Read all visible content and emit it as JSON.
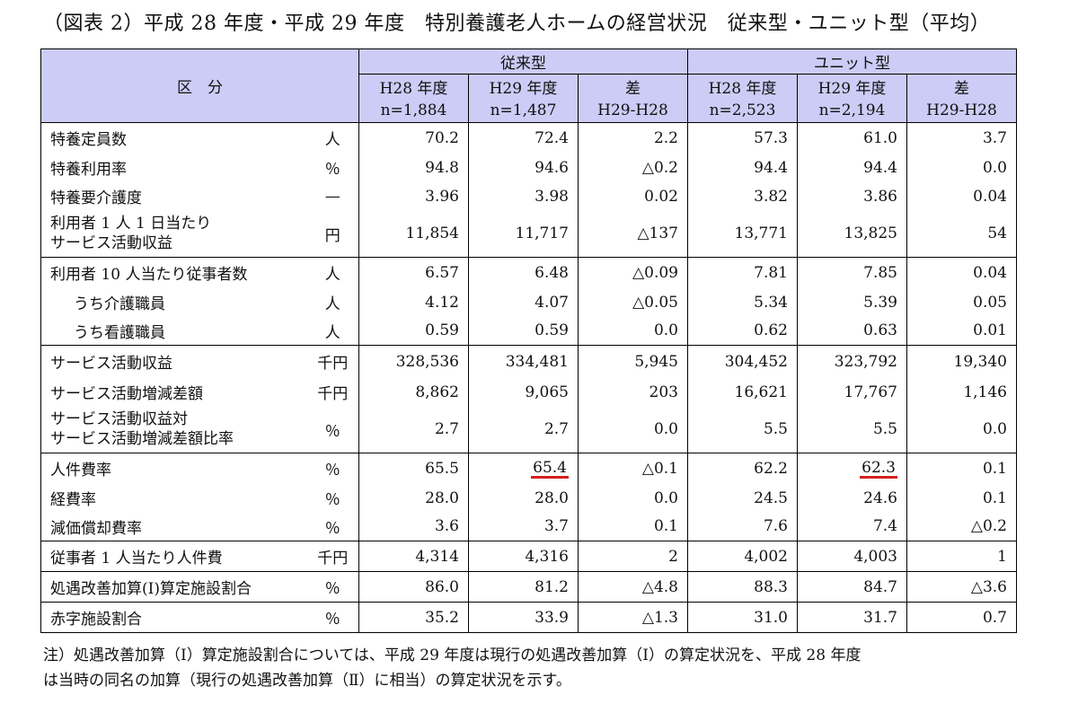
{
  "title": "（図表 2）平成 28 年度・平成 29 年度　特別養護老人ホームの経営状況　従来型・ユニット型（平均）",
  "header": {
    "category_label": "区　分",
    "group_traditional": "従来型",
    "group_unit": "ユニット型",
    "cols": [
      {
        "year": "H28 年度",
        "n": "n=1,884"
      },
      {
        "year": "H29 年度",
        "n": "n=1,487"
      },
      {
        "year": "差",
        "n": "H29-H28"
      },
      {
        "year": "H28 年度",
        "n": "n=2,523"
      },
      {
        "year": "H29 年度",
        "n": "n=2,194"
      },
      {
        "year": "差",
        "n": "H29-H28"
      }
    ]
  },
  "rows": [
    {
      "label": "特養定員数",
      "unit": "人",
      "values": [
        "70.2",
        "72.4",
        "2.2",
        "57.3",
        "61.0",
        "3.7"
      ]
    },
    {
      "label": "特養利用率",
      "unit": "％",
      "values": [
        "94.8",
        "94.6",
        "△0.2",
        "94.4",
        "94.4",
        "0.0"
      ]
    },
    {
      "label": "特養要介護度",
      "unit": "—",
      "values": [
        "3.96",
        "3.98",
        "0.02",
        "3.82",
        "3.86",
        "0.04"
      ]
    },
    {
      "label": "利用者 1 人 1 日当たり",
      "label2": "サービス活動収益",
      "unit": "円",
      "values": [
        "11,854",
        "11,717",
        "△137",
        "13,771",
        "13,825",
        "54"
      ]
    },
    {
      "label": "利用者 10 人当たり従事者数",
      "unit": "人",
      "values": [
        "6.57",
        "6.48",
        "△0.09",
        "7.81",
        "7.85",
        "0.04"
      ]
    },
    {
      "label": "うち介護職員",
      "unit": "人",
      "values": [
        "4.12",
        "4.07",
        "△0.05",
        "5.34",
        "5.39",
        "0.05"
      ]
    },
    {
      "label": "うち看護職員",
      "unit": "人",
      "values": [
        "0.59",
        "0.59",
        "0.0",
        "0.62",
        "0.63",
        "0.01"
      ]
    },
    {
      "label": "サービス活動収益",
      "unit": "千円",
      "values": [
        "328,536",
        "334,481",
        "5,945",
        "304,452",
        "323,792",
        "19,340"
      ]
    },
    {
      "label": "サービス活動増減差額",
      "unit": "千円",
      "values": [
        "8,862",
        "9,065",
        "203",
        "16,621",
        "17,767",
        "1,146"
      ]
    },
    {
      "label": "サービス活動収益対",
      "label2": "サービス活動増減差額比率",
      "unit": "％",
      "values": [
        "2.7",
        "2.7",
        "0.0",
        "5.5",
        "5.5",
        "0.0"
      ]
    },
    {
      "label": "人件費率",
      "unit": "％",
      "values": [
        "65.5",
        "65.4",
        "△0.1",
        "62.2",
        "62.3",
        "0.1"
      ]
    },
    {
      "label": "経費率",
      "unit": "％",
      "values": [
        "28.0",
        "28.0",
        "0.0",
        "24.5",
        "24.6",
        "0.1"
      ]
    },
    {
      "label": "減価償却費率",
      "unit": "％",
      "values": [
        "3.6",
        "3.7",
        "0.1",
        "7.6",
        "7.4",
        "△0.2"
      ]
    },
    {
      "label": "従事者 1 人当たり人件費",
      "unit": "千円",
      "values": [
        "4,314",
        "4,316",
        "2",
        "4,002",
        "4,003",
        "1"
      ]
    },
    {
      "label": "処遇改善加算(Ⅰ)算定施設割合",
      "unit": "％",
      "values": [
        "86.0",
        "81.2",
        "△4.8",
        "88.3",
        "84.7",
        "△3.6"
      ]
    },
    {
      "label": "赤字施設割合",
      "unit": "％",
      "values": [
        "35.2",
        "33.9",
        "△1.3",
        "31.0",
        "31.7",
        "0.7"
      ]
    }
  ],
  "note_line1": "注）処遇改善加算（Ⅰ）算定施設割合については、平成 29 年度は現行の処遇改善加算（Ⅰ）の算定状況を、平成 28 年度",
  "note_line2": "は当時の同名の加算（現行の処遇改善加算（Ⅱ）に相当）の算定状況を示す。",
  "highlight_color": "#d62020"
}
